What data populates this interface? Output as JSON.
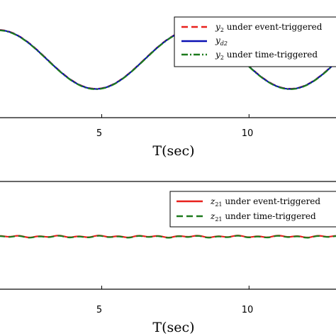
{
  "chart_data": [
    {
      "type": "line",
      "xlabel": "T(sec)",
      "x_ticks": [
        "5",
        "10"
      ],
      "x_tick_values": [
        5,
        10
      ],
      "xlim": [
        1.5,
        13.0
      ],
      "ylim": [
        -1.35,
        1.35
      ],
      "grid": false,
      "legend_position": "top-right",
      "series": [
        {
          "name": "y_2 under event-triggered",
          "legend_main": "y",
          "legend_sub": "2",
          "legend_suffix": " under event-triggered",
          "color": "#e8201c",
          "style": "dashed"
        },
        {
          "name": "y_d2",
          "legend_main": "y",
          "legend_sub": "d2",
          "legend_suffix": "",
          "color": "#0a10b4",
          "style": "solid"
        },
        {
          "name": "y_2 under time-triggered",
          "legend_main": "y",
          "legend_sub": "2",
          "legend_suffix": " under time-triggered",
          "color": "#1d7a1d",
          "style": "dashdot"
        }
      ],
      "signal": {
        "kind": "sine",
        "amplitude": 1.0,
        "period": 6.6,
        "peak_at": 1.5
      },
      "x": [
        1.5,
        2.0,
        2.5,
        3.0,
        3.5,
        4.0,
        4.5,
        4.8,
        5.0,
        5.5,
        6.0,
        6.5,
        7.0,
        7.5,
        8.0,
        8.1,
        8.5,
        9.0,
        9.5,
        10.0,
        10.5,
        11.0,
        11.4,
        11.5,
        12.0,
        12.5,
        13.0
      ],
      "y": [
        1.0,
        0.93,
        0.73,
        0.44,
        0.09,
        -0.27,
        -0.6,
        -1.0,
        -0.97,
        -0.88,
        -0.66,
        -0.34,
        0.01,
        0.38,
        0.98,
        1.0,
        0.92,
        0.72,
        0.43,
        0.08,
        -0.29,
        -0.62,
        -0.99,
        -0.97,
        -0.87,
        -0.64,
        -0.32
      ]
    },
    {
      "type": "line",
      "xlabel": "T(sec)",
      "x_ticks": [
        "5",
        "10"
      ],
      "x_tick_values": [
        5,
        10
      ],
      "xlim": [
        1.5,
        13.0
      ],
      "ylim": [
        -1.0,
        1.0
      ],
      "grid": false,
      "legend_position": "top-right",
      "series": [
        {
          "name": "z_21 under event-triggered",
          "legend_main": "z",
          "legend_sub": "21",
          "legend_suffix": " under event-triggered",
          "color": "#e8201c",
          "style": "solid"
        },
        {
          "name": "z_21 under time-triggered",
          "legend_main": "z",
          "legend_sub": "21",
          "legend_suffix": " under time-triggered",
          "color": "#1d7a1d",
          "style": "dashed"
        }
      ],
      "x": [
        1.5,
        3.0,
        4.5,
        6.0,
        7.5,
        9.0,
        10.5,
        12.0,
        13.0
      ],
      "y": [
        0.0,
        0.0,
        0.0,
        0.0,
        0.0,
        0.0,
        0.0,
        0.0,
        0.0
      ]
    }
  ]
}
